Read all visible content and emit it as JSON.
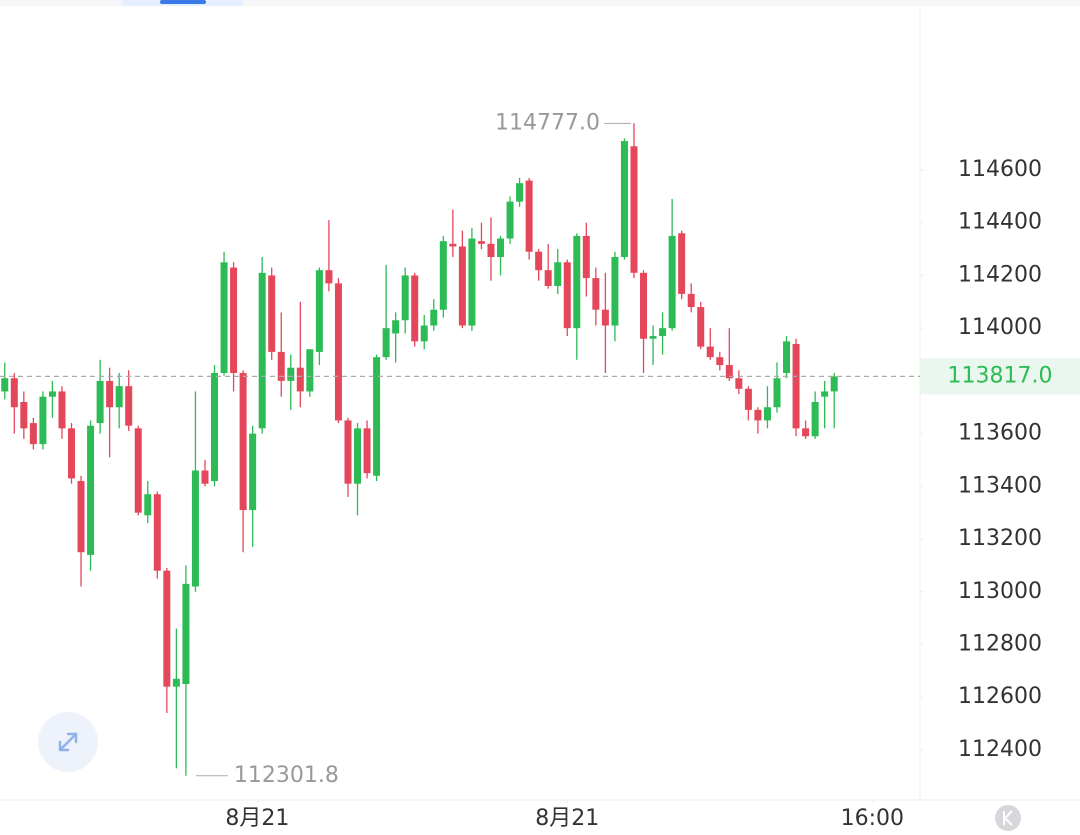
{
  "chart_data": {
    "type": "candlestick",
    "open": [
      113760,
      113810,
      113720,
      113640,
      113560,
      113740,
      113760,
      113620,
      113420,
      113140,
      113640,
      113800,
      113700,
      113780,
      113620,
      113290,
      113370,
      113080,
      112640,
      112650,
      113020,
      113460,
      113420,
      113830,
      114230,
      113830,
      113310,
      113620,
      114200,
      113910,
      113800,
      113850,
      113760,
      113910,
      114220,
      114170,
      113650,
      113410,
      113620,
      113440,
      113890,
      113980,
      114030,
      114200,
      113950,
      114010,
      114070,
      114320,
      114310,
      114010,
      114330,
      114320,
      114270,
      114340,
      114480,
      114560,
      114290,
      114220,
      114160,
      114250,
      114000,
      114350,
      114190,
      114070,
      114010,
      114270,
      114690,
      114210,
      113960,
      113970,
      114000,
      114360,
      114130,
      114080,
      113930,
      113890,
      113860,
      113810,
      113770,
      113690,
      113650,
      113700,
      113830,
      113940,
      113620,
      113590,
      113740,
      113760
    ],
    "high": [
      113870,
      113830,
      113760,
      113660,
      113760,
      113800,
      113780,
      113640,
      113440,
      113650,
      113880,
      113850,
      113830,
      113840,
      113630,
      113420,
      113380,
      113090,
      112860,
      113100,
      113760,
      113500,
      113860,
      114290,
      114250,
      113840,
      113630,
      114270,
      114230,
      114060,
      113900,
      114100,
      113920,
      114230,
      114410,
      114190,
      113660,
      113640,
      113650,
      113900,
      114240,
      114060,
      114230,
      114210,
      114050,
      114110,
      114350,
      114450,
      114370,
      114380,
      114400,
      114420,
      114350,
      114500,
      114570,
      114570,
      114300,
      114320,
      114300,
      114260,
      114360,
      114400,
      114230,
      114210,
      114290,
      114720,
      114777,
      114220,
      114010,
      114060,
      114490,
      114370,
      114170,
      114100,
      114000,
      113910,
      114000,
      113840,
      113780,
      113700,
      113780,
      113870,
      113970,
      113960,
      113650,
      113760,
      113800,
      113830
    ],
    "low": [
      113730,
      113600,
      113580,
      113540,
      113540,
      113660,
      113580,
      113410,
      113020,
      113080,
      113600,
      113510,
      113620,
      113610,
      113290,
      113260,
      113050,
      112540,
      112330,
      112301.8,
      113000,
      113400,
      113400,
      113820,
      113760,
      113150,
      113170,
      113600,
      113880,
      113740,
      113690,
      113700,
      113740,
      113860,
      114140,
      113640,
      113360,
      113290,
      113430,
      113420,
      113880,
      113870,
      113980,
      113930,
      113920,
      113990,
      114040,
      114270,
      114000,
      113990,
      114300,
      114180,
      114200,
      114320,
      114460,
      114260,
      114180,
      114150,
      114130,
      113970,
      113880,
      114120,
      114010,
      113830,
      113950,
      114260,
      114190,
      113830,
      113860,
      113900,
      113990,
      114110,
      114060,
      113920,
      113880,
      113840,
      113800,
      113750,
      113650,
      113600,
      113620,
      113680,
      113810,
      113590,
      113580,
      113580,
      113620,
      113620
    ],
    "close": [
      113810,
      113700,
      113620,
      113560,
      113740,
      113760,
      113620,
      113430,
      113150,
      113630,
      113800,
      113700,
      113780,
      113630,
      113300,
      113370,
      113080,
      112640,
      112670,
      113030,
      113460,
      113410,
      113830,
      114250,
      113830,
      113310,
      113600,
      114210,
      113910,
      113800,
      113850,
      113760,
      113920,
      114220,
      114170,
      113650,
      113410,
      113620,
      113450,
      113890,
      114000,
      114030,
      114200,
      113950,
      114010,
      114070,
      114330,
      114310,
      114010,
      114340,
      114320,
      114270,
      114340,
      114480,
      114550,
      114290,
      114220,
      114160,
      114250,
      114000,
      114350,
      114190,
      114070,
      114010,
      114270,
      114710,
      114210,
      113960,
      113970,
      114000,
      114350,
      114130,
      114080,
      113930,
      113890,
      113860,
      113810,
      113770,
      113690,
      113650,
      113700,
      113810,
      113950,
      113620,
      113590,
      113720,
      113760,
      113817
    ],
    "up_color": "#2dbb55",
    "down_color": "#e5475a",
    "ylim": [
      112210,
      115245
    ],
    "yticks": [
      112400,
      112600,
      112800,
      113000,
      113200,
      113400,
      113600,
      114000,
      114200,
      114400,
      114600
    ],
    "xlim": [
      -0.5,
      96
    ],
    "xticks": [
      {
        "value": 26.5,
        "label": "8月21"
      },
      {
        "value": 59,
        "label": "8月21"
      },
      {
        "value": 91,
        "label": "16:00"
      }
    ],
    "max_label": {
      "value": 114777,
      "label": "114777.0"
    },
    "min_label": {
      "value": 112301.8,
      "label": "112301.8"
    },
    "last_price": {
      "value": 113817,
      "label": "113817.0"
    }
  }
}
